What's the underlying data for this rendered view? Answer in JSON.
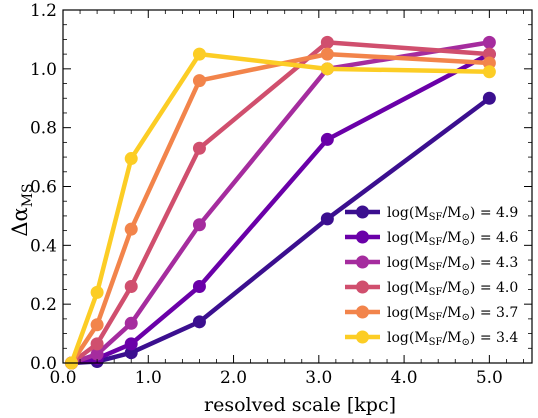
{
  "chart_data": {
    "type": "line",
    "title": "",
    "xlabel": "resolved scale [kpc]",
    "ylabel_main": "Δα",
    "ylabel_sub": "MS",
    "xlim": [
      0.0,
      5.5
    ],
    "ylim": [
      0.0,
      1.2
    ],
    "x_ticks": [
      0.0,
      1.0,
      2.0,
      3.0,
      4.0,
      5.0
    ],
    "x_tick_labels": [
      "0.0",
      "1.0",
      "2.0",
      "3.0",
      "4.0",
      "5.0"
    ],
    "y_ticks": [
      0.0,
      0.2,
      0.4,
      0.6,
      0.8,
      1.0,
      1.2
    ],
    "y_tick_labels": [
      "0.0",
      "0.2",
      "0.4",
      "0.6",
      "0.8",
      "1.0",
      "1.2"
    ],
    "grid": false,
    "legend_position": "lower-right",
    "legend_prefix": "log(M",
    "legend_sub": "SF",
    "legend_mid": "/M",
    "legend_sun": "⊙",
    "legend_suffix": ") = ",
    "x": [
      0.1,
      0.4,
      0.8,
      1.6,
      3.1,
      5.0
    ],
    "series": [
      {
        "name": "4.9",
        "color": "#3b0f8f",
        "values": [
          0.0,
          0.005,
          0.035,
          0.14,
          0.49,
          0.9
        ]
      },
      {
        "name": "4.6",
        "color": "#6a00a8",
        "values": [
          0.0,
          0.015,
          0.065,
          0.26,
          0.76,
          1.05
        ]
      },
      {
        "name": "4.3",
        "color": "#a52c9e",
        "values": [
          0.0,
          0.03,
          0.135,
          0.47,
          1.0,
          1.09
        ]
      },
      {
        "name": "4.0",
        "color": "#d04f6e",
        "values": [
          0.0,
          0.065,
          0.26,
          0.73,
          1.09,
          1.05
        ]
      },
      {
        "name": "3.7",
        "color": "#f2844b",
        "values": [
          0.0,
          0.13,
          0.455,
          0.96,
          1.05,
          1.02
        ]
      },
      {
        "name": "3.4",
        "color": "#fccd25",
        "values": [
          0.0,
          0.24,
          0.695,
          1.05,
          1.0,
          0.99
        ]
      }
    ]
  }
}
